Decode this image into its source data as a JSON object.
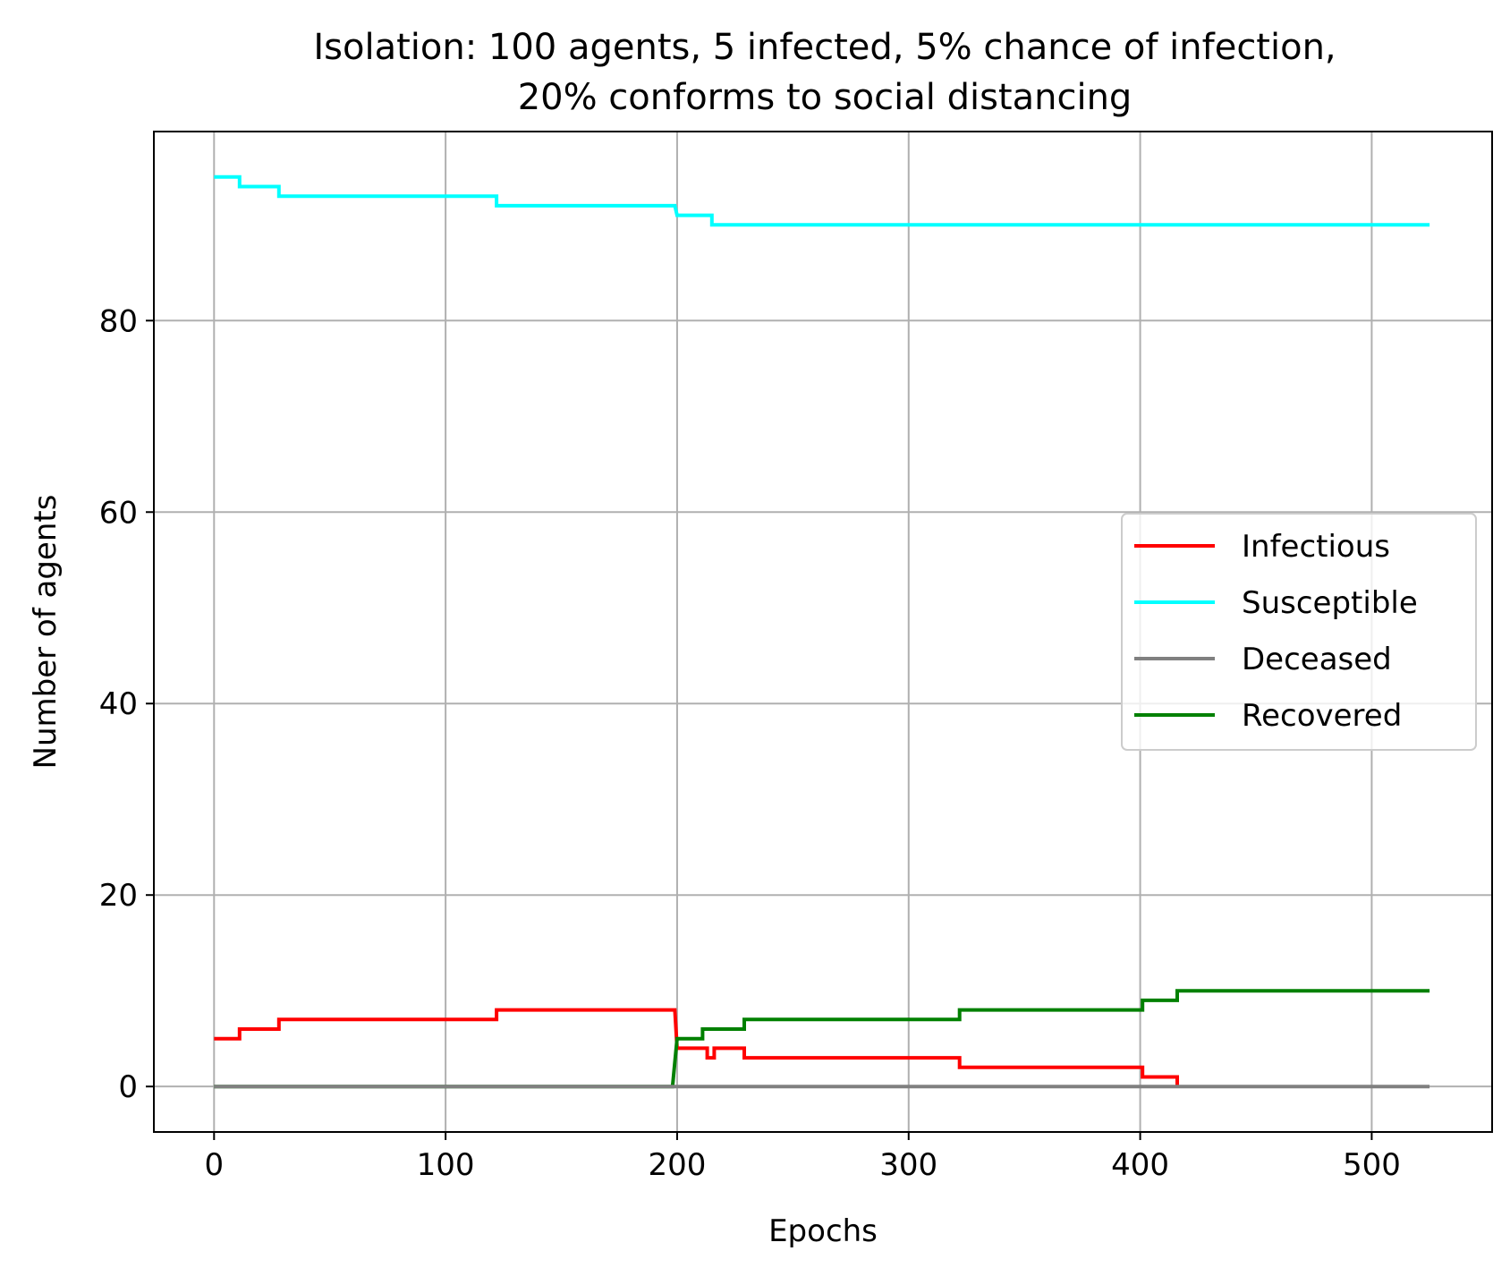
{
  "chart_data": {
    "type": "line",
    "title": "Isolation: 100 agents, 5 infected, 5% chance of infection,",
    "subtitle": "20% conforms to social distancing",
    "xlabel": "Epochs",
    "ylabel": "Number of agents",
    "xlim": [
      -26,
      552
    ],
    "ylim": [
      -4.75,
      99.75
    ],
    "xticks": [
      0,
      100,
      200,
      300,
      400,
      500
    ],
    "yticks": [
      0,
      20,
      40,
      60,
      80
    ],
    "grid": true,
    "legend_position": "center-right",
    "series": [
      {
        "name": "Infectious",
        "color": "#ff0000",
        "x": [
          0,
          11,
          11,
          28,
          28,
          122,
          122,
          199,
          200,
          213,
          213,
          216,
          216,
          229,
          229,
          322,
          322,
          401,
          401,
          416,
          416
        ],
        "y": [
          5,
          5,
          6,
          6,
          7,
          7,
          8,
          8,
          4,
          4,
          3,
          3,
          4,
          4,
          3,
          3,
          2,
          2,
          1,
          1,
          0
        ]
      },
      {
        "name": "Susceptible",
        "color": "#00ffff",
        "x": [
          0,
          11,
          11,
          28,
          28,
          122,
          122,
          199,
          200,
          215,
          215,
          525
        ],
        "y": [
          95,
          95,
          94,
          94,
          93,
          93,
          92,
          92,
          91,
          91,
          90,
          90
        ]
      },
      {
        "name": "Deceased",
        "color": "#808080",
        "x": [
          0,
          525
        ],
        "y": [
          0,
          0
        ]
      },
      {
        "name": "Recovered",
        "color": "#008000",
        "x": [
          0,
          198,
          200,
          211,
          211,
          229,
          229,
          322,
          322,
          401,
          401,
          416,
          416,
          525
        ],
        "y": [
          0,
          0,
          5,
          5,
          6,
          6,
          7,
          7,
          8,
          8,
          9,
          9,
          10,
          10
        ]
      }
    ]
  }
}
